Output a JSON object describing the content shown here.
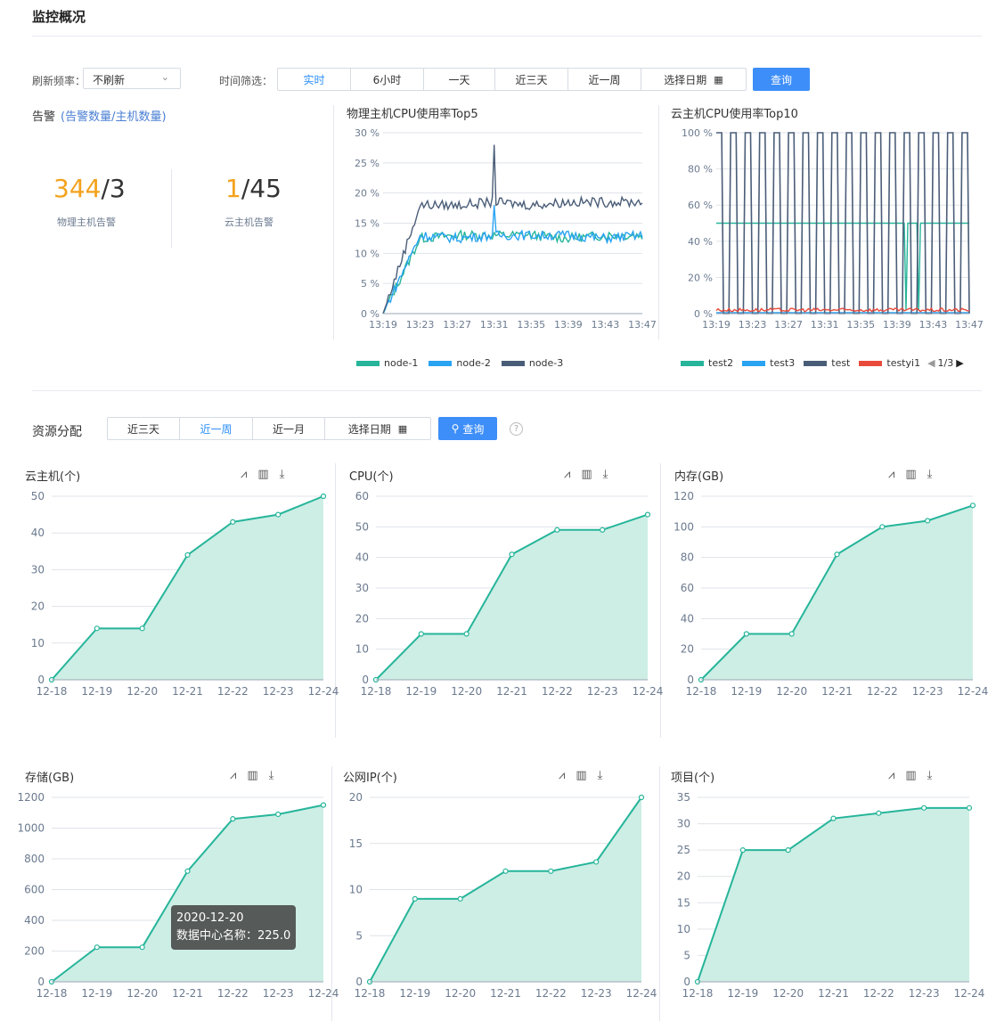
{
  "page_title": "监控概况",
  "filters": {
    "refresh_label": "刷新频率：",
    "refresh_value": "不刷新",
    "time_label": "时间筛选：",
    "time_options": [
      "实时",
      "6小时",
      "一天",
      "近三天",
      "近一周",
      "选择日期"
    ],
    "active_time": "实时",
    "query": "查询"
  },
  "alarm": {
    "title": "告警",
    "subtitle": "(告警数量/主机数量)",
    "physical": {
      "count": "344",
      "total": "/3",
      "label": "物理主机告警"
    },
    "cloud": {
      "count": "1",
      "total": "/45",
      "label": "云主机告警"
    }
  },
  "cpu_phys_title": "物理主机CPU使用率Top5",
  "cpu_cloud_title": "云主机CPU使用率Top10",
  "resource": {
    "title": "资源分配",
    "options": [
      "近三天",
      "近一周",
      "近一月",
      "选择日期"
    ],
    "active": "近一周",
    "query": "查询"
  },
  "tooltip": {
    "date": "2020-12-20",
    "label": "数据中心名称：225.0"
  },
  "colors": {
    "accent": "#3d8ef8",
    "warn": "#f3a21d",
    "teal": "#26b59a",
    "blue": "#29a3f2",
    "navy": "#4a5d78",
    "red": "#e84b3c"
  },
  "chart_data": [
    {
      "type": "line",
      "title": "物理主机CPU使用率Top5",
      "x": [
        "13:19",
        "13:23",
        "13:27",
        "13:31",
        "13:35",
        "13:39",
        "13:43",
        "13:47"
      ],
      "ylim": [
        0,
        30
      ],
      "yticks": [
        "0 %",
        "5 %",
        "10 %",
        "15 %",
        "20 %",
        "25 %",
        "30 %"
      ],
      "series": [
        {
          "name": "node-1",
          "color": "#26b59a",
          "values": [
            0,
            12.5,
            13,
            13,
            13,
            12.5,
            13,
            13
          ]
        },
        {
          "name": "node-2",
          "color": "#29a3f2",
          "values": [
            0,
            13,
            12.5,
            13,
            13,
            13,
            12.5,
            13
          ]
        },
        {
          "name": "node-3",
          "color": "#4a5d78",
          "values": [
            0,
            18,
            18,
            18.5,
            18,
            18.5,
            18.5,
            18.5
          ]
        }
      ],
      "legend": "bottom"
    },
    {
      "type": "line",
      "title": "云主机CPU使用率Top10",
      "x": [
        "13:19",
        "13:23",
        "13:27",
        "13:31",
        "13:35",
        "13:39",
        "13:43",
        "13:47"
      ],
      "ylim": [
        0,
        100
      ],
      "yticks": [
        "0 %",
        "20 %",
        "40 %",
        "60 %",
        "80 %",
        "100 %"
      ],
      "series": [
        {
          "name": "test2",
          "color": "#26b59a",
          "values": [
            50,
            50,
            50,
            50,
            50,
            50,
            50,
            50
          ]
        },
        {
          "name": "test3",
          "color": "#29a3f2",
          "values": [
            0,
            0,
            0,
            0,
            0,
            0,
            0,
            0
          ]
        },
        {
          "name": "test",
          "color": "#4a5d78",
          "values": [
            100,
            0,
            100,
            0,
            100,
            0,
            100,
            0
          ]
        },
        {
          "name": "testyi1",
          "color": "#e84b3c",
          "values": [
            1,
            1,
            1,
            1,
            1,
            1,
            1,
            1
          ]
        }
      ],
      "legend": "bottom",
      "legend_page": "1/3"
    },
    {
      "type": "area",
      "title": "云主机(个)",
      "categories": [
        "12-18",
        "12-19",
        "12-20",
        "12-21",
        "12-22",
        "12-23",
        "12-24"
      ],
      "values": [
        0,
        14,
        14,
        34,
        43,
        45,
        50
      ],
      "ylim": [
        0,
        50
      ],
      "yticks": [
        0,
        10,
        20,
        30,
        40,
        50
      ]
    },
    {
      "type": "area",
      "title": "CPU(个)",
      "categories": [
        "12-18",
        "12-19",
        "12-20",
        "12-21",
        "12-22",
        "12-23",
        "12-24"
      ],
      "values": [
        0,
        15,
        15,
        41,
        49,
        49,
        54
      ],
      "ylim": [
        0,
        60
      ],
      "yticks": [
        0,
        10,
        20,
        30,
        40,
        50,
        60
      ]
    },
    {
      "type": "area",
      "title": "内存(GB)",
      "categories": [
        "12-18",
        "12-19",
        "12-20",
        "12-21",
        "12-22",
        "12-23",
        "12-24"
      ],
      "values": [
        0,
        30,
        30,
        82,
        100,
        104,
        114
      ],
      "ylim": [
        0,
        120
      ],
      "yticks": [
        0,
        20,
        40,
        60,
        80,
        100,
        120
      ]
    },
    {
      "type": "area",
      "title": "存储(GB)",
      "categories": [
        "12-18",
        "12-19",
        "12-20",
        "12-21",
        "12-22",
        "12-23",
        "12-24"
      ],
      "values": [
        0,
        225,
        225,
        720,
        1060,
        1090,
        1150
      ],
      "ylim": [
        0,
        1200
      ],
      "yticks": [
        0,
        200,
        400,
        600,
        800,
        1000,
        1200
      ]
    },
    {
      "type": "area",
      "title": "公网IP(个)",
      "categories": [
        "12-18",
        "12-19",
        "12-20",
        "12-21",
        "12-22",
        "12-23",
        "12-24"
      ],
      "values": [
        0,
        9,
        9,
        12,
        12,
        13,
        20
      ],
      "ylim": [
        0,
        20
      ],
      "yticks": [
        0,
        5,
        10,
        15,
        20
      ]
    },
    {
      "type": "area",
      "title": "项目(个)",
      "categories": [
        "12-18",
        "12-19",
        "12-20",
        "12-21",
        "12-22",
        "12-23",
        "12-24"
      ],
      "values": [
        0,
        25,
        25,
        31,
        32,
        33,
        33
      ],
      "ylim": [
        0,
        35
      ],
      "yticks": [
        0,
        5,
        10,
        15,
        20,
        25,
        30,
        35
      ]
    }
  ]
}
